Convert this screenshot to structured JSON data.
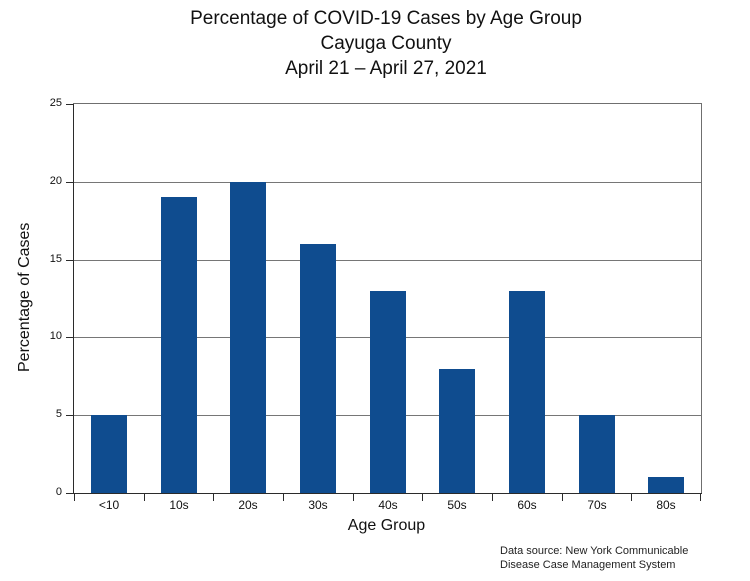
{
  "title": {
    "line1": "Percentage of COVID-19 Cases by Age Group",
    "line2": "Cayuga County",
    "line3": "April 21 – April 27, 2021"
  },
  "chart_data": {
    "type": "bar",
    "title": "Percentage of COVID-19 Cases by Age Group — Cayuga County — April 21 – April 27, 2021",
    "categories": [
      "<10",
      "10s",
      "20s",
      "30s",
      "40s",
      "50s",
      "60s",
      "70s",
      "80s"
    ],
    "values": [
      5,
      19,
      20,
      16,
      13,
      8,
      13,
      5,
      1
    ],
    "xlabel": "Age Group",
    "ylabel": "Percentage of Cases",
    "ylim": [
      0,
      25
    ],
    "yticks": [
      0,
      5,
      10,
      15,
      20,
      25
    ],
    "grid": true,
    "legend": "none",
    "bar_color": "#0F4C8F",
    "gridline_color": "#767676",
    "axis_color": "#2b2b2b",
    "text_color": "#111111"
  },
  "footer": {
    "source_line1": "Data source: New York Communicable",
    "source_line2": "Disease Case Management System"
  }
}
